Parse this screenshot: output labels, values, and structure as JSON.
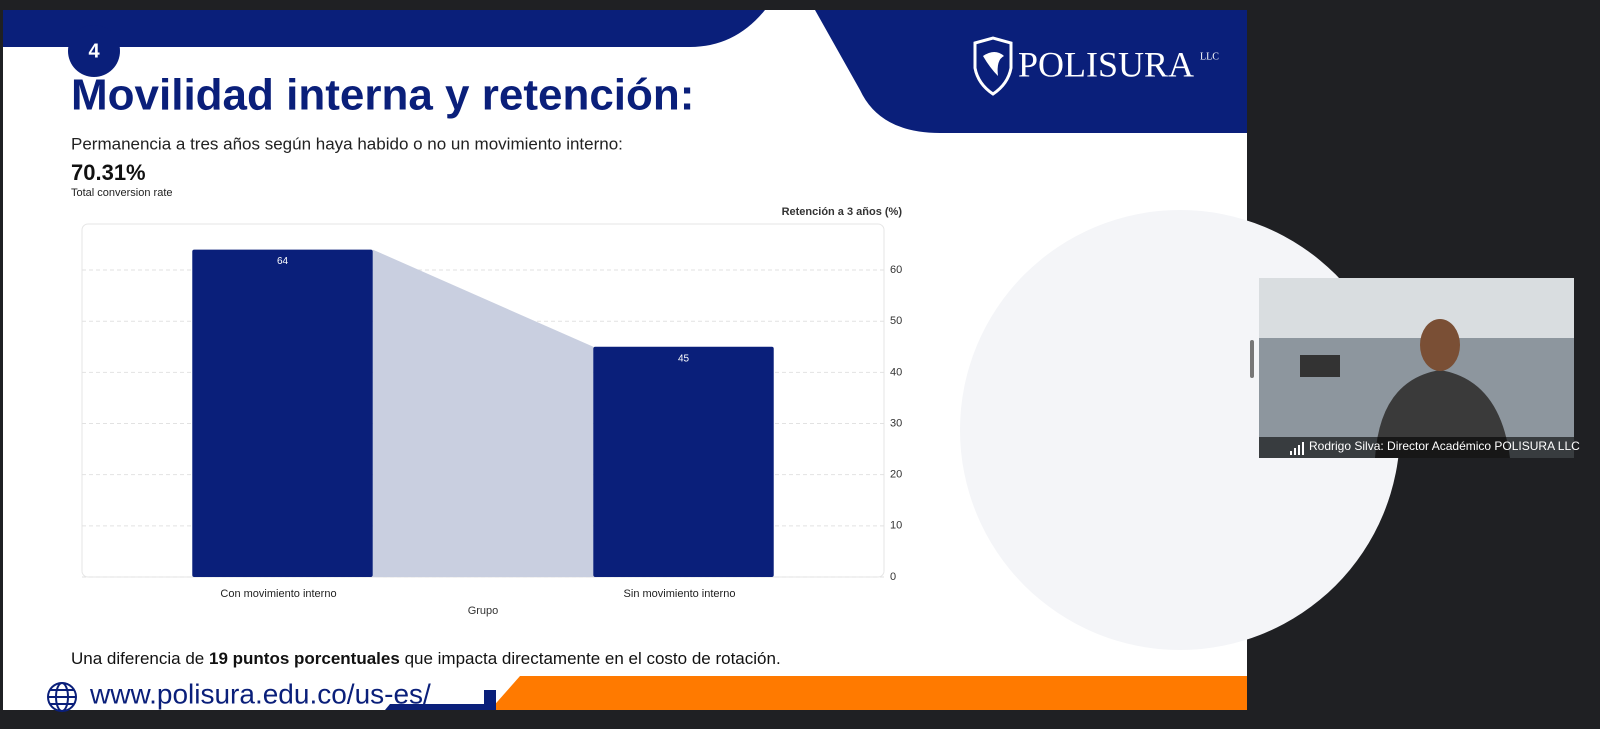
{
  "slide": {
    "number": "4",
    "title": "Movilidad interna y retención:",
    "subtitle": "Permanencia a tres años según haya habido o no un movimiento interno:",
    "kpi": "70.31%",
    "kpi_label": "Total conversion rate",
    "logo_name": "POLISURA",
    "logo_suffix": "LLC",
    "footer_parts": [
      "Una diferencia de",
      "19 puntos porcentuales",
      "que impacta directamente en el costo de rotación."
    ],
    "url": "www.polisura.edu.co/us-es/"
  },
  "chart_data": {
    "type": "bar",
    "categories": [
      "Con movimiento interno",
      "Sin movimiento interno"
    ],
    "values": [
      64,
      45
    ],
    "color": "#0a1f7a",
    "connector_color": "#c9cfe0",
    "x_label": "Grupo",
    "y_label": "Retención a 3 años (%)",
    "ylim": [
      0,
      69
    ],
    "yticks": [
      0,
      10,
      20,
      30,
      40,
      50,
      60
    ],
    "grid": true,
    "y_axis_side": "right"
  },
  "video": {
    "caption": "Rodrigo Silva: Director Académico POLISURA LLC"
  }
}
